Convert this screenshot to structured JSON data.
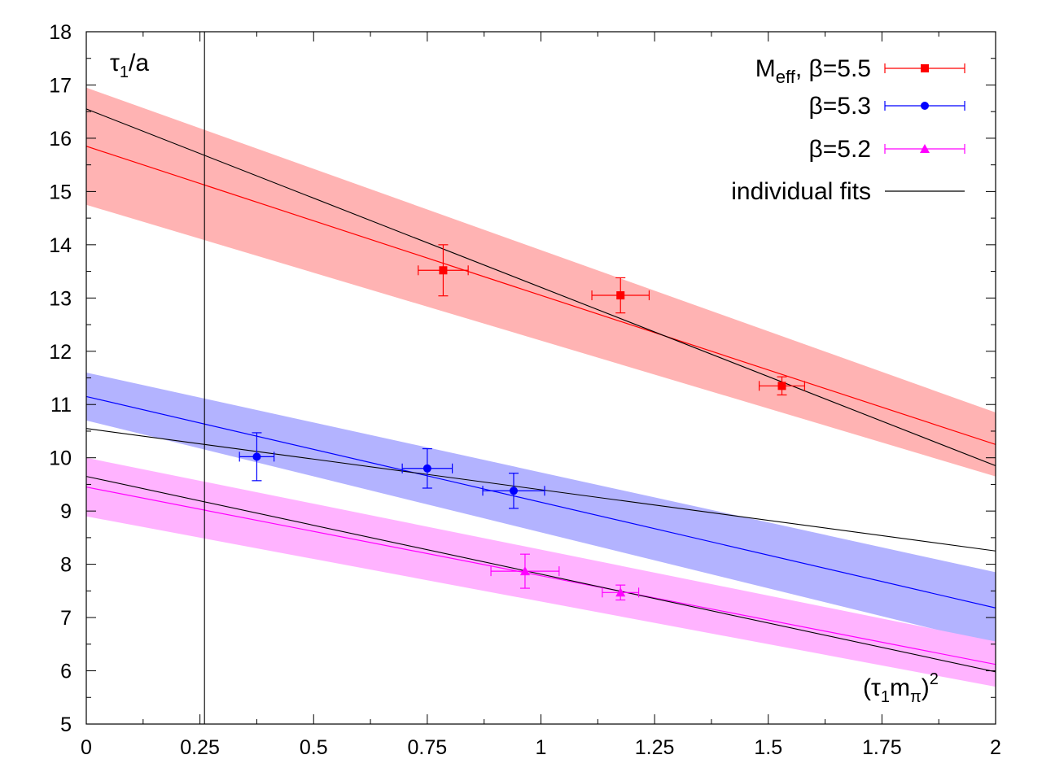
{
  "chart_data": {
    "type": "line",
    "ylabel": "τ1/a",
    "xlabel": "(τ1mπ)2",
    "xlim": [
      0,
      2
    ],
    "ylim": [
      5,
      18
    ],
    "x_ticks": [
      0,
      0.25,
      0.5,
      0.75,
      1,
      1.25,
      1.5,
      1.75,
      2
    ],
    "x_tick_labels": [
      "0",
      "0.25",
      "0.5",
      "0.75",
      "1",
      "1.25",
      "1.5",
      "1.75",
      "2"
    ],
    "y_ticks": [
      5,
      6,
      7,
      8,
      9,
      10,
      11,
      12,
      13,
      14,
      15,
      16,
      17,
      18
    ],
    "y_tick_labels": [
      "5",
      "6",
      "7",
      "8",
      "9",
      "10",
      "11",
      "12",
      "13",
      "14",
      "15",
      "16",
      "17",
      "18"
    ],
    "vertical_line_x": 0.26,
    "series": [
      {
        "name": "Meff, β=5.5",
        "legend_main": "M",
        "legend_sub": "eff",
        "legend_rest": ", β=5.5",
        "color": "#ff0000",
        "band_color": "#ffb3b3",
        "marker": "square",
        "points": [
          {
            "x": 0.785,
            "y": 13.52,
            "xerr": 0.055,
            "yerr": 0.48
          },
          {
            "x": 1.175,
            "y": 13.05,
            "xerr": 0.063,
            "yerr": 0.33
          },
          {
            "x": 1.53,
            "y": 11.35,
            "xerr": 0.05,
            "yerr": 0.17
          }
        ],
        "band": {
          "x": [
            0,
            2
          ],
          "upper": [
            16.95,
            10.85
          ],
          "lower": [
            14.75,
            9.65
          ]
        },
        "fit": {
          "x": [
            0,
            2
          ],
          "y": [
            15.85,
            10.25
          ]
        },
        "individual_fit": {
          "x": [
            0,
            2
          ],
          "y": [
            16.55,
            9.85
          ]
        }
      },
      {
        "name": "β=5.3",
        "legend_main": "β=5.3",
        "legend_sub": "",
        "legend_rest": "",
        "color": "#0000ff",
        "band_color": "#b3b3ff",
        "marker": "circle",
        "points": [
          {
            "x": 0.375,
            "y": 10.02,
            "xerr": 0.038,
            "yerr": 0.45
          },
          {
            "x": 0.75,
            "y": 9.8,
            "xerr": 0.055,
            "yerr": 0.37
          },
          {
            "x": 0.94,
            "y": 9.38,
            "xerr": 0.068,
            "yerr": 0.33
          }
        ],
        "band": {
          "x": [
            0,
            2
          ],
          "upper": [
            11.6,
            7.85
          ],
          "lower": [
            10.7,
            6.5
          ]
        },
        "fit": {
          "x": [
            0,
            2
          ],
          "y": [
            11.15,
            7.18
          ]
        },
        "individual_fit": {
          "x": [
            0,
            2
          ],
          "y": [
            10.55,
            8.25
          ]
        }
      },
      {
        "name": "β=5.2",
        "legend_main": "β=5.2",
        "legend_sub": "",
        "legend_rest": "",
        "color": "#ff00ff",
        "band_color": "#ffb3ff",
        "marker": "triangle",
        "points": [
          {
            "x": 0.965,
            "y": 7.87,
            "xerr": 0.075,
            "yerr": 0.32
          },
          {
            "x": 1.175,
            "y": 7.47,
            "xerr": 0.04,
            "yerr": 0.14
          }
        ],
        "band": {
          "x": [
            0,
            2
          ],
          "upper": [
            10.0,
            6.55
          ],
          "lower": [
            8.9,
            5.7
          ]
        },
        "fit": {
          "x": [
            0,
            2
          ],
          "y": [
            9.45,
            6.12
          ]
        },
        "individual_fit": {
          "x": [
            0,
            2
          ],
          "y": [
            9.65,
            5.98
          ]
        }
      }
    ],
    "legend": [
      {
        "label": "Meff, β=5.5",
        "main": "M",
        "sub": "eff",
        "rest": ", β=5.5",
        "color": "#ff0000",
        "marker": "square"
      },
      {
        "label": "β=5.3",
        "main": "β=5.3",
        "sub": "",
        "rest": "",
        "color": "#0000ff",
        "marker": "circle"
      },
      {
        "label": "β=5.2",
        "main": "β=5.2",
        "sub": "",
        "rest": "",
        "color": "#ff00ff",
        "marker": "triangle"
      },
      {
        "label": "individual fits",
        "main": "individual fits",
        "sub": "",
        "rest": "",
        "color": "#000000",
        "marker": "none"
      }
    ],
    "legend_position": "top-right"
  }
}
